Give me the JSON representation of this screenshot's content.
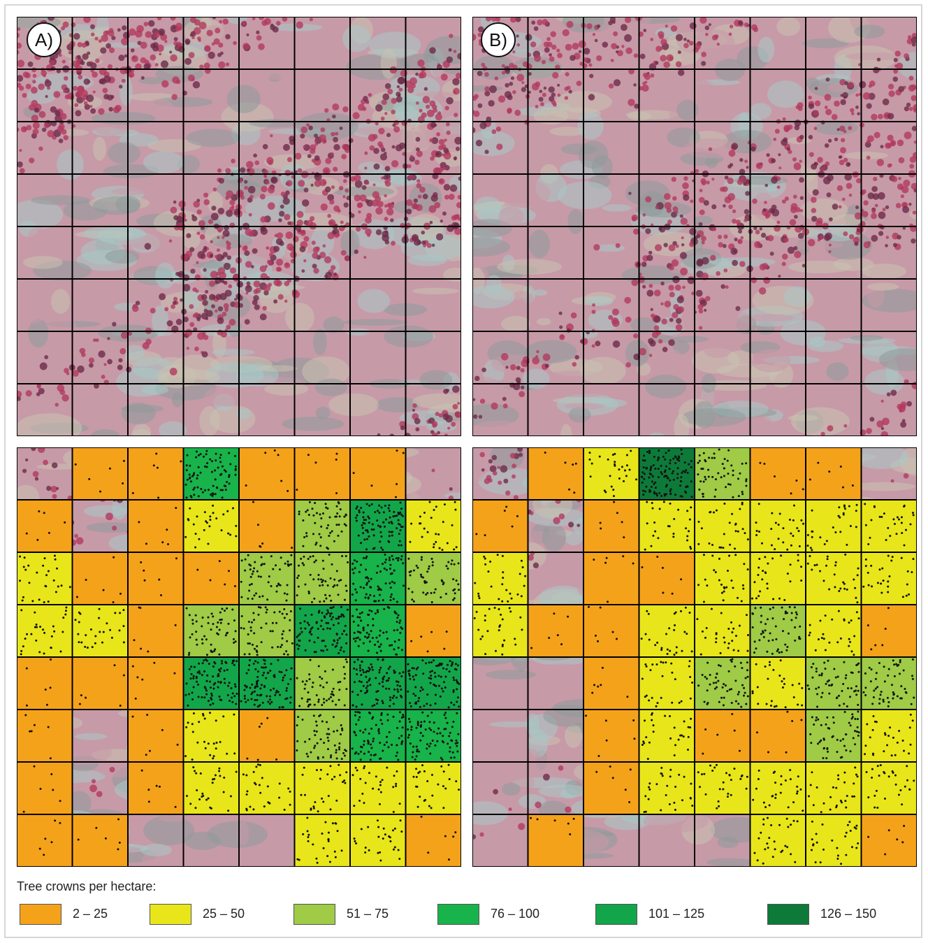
{
  "panels": {
    "a_label": "A)",
    "b_label": "B)"
  },
  "grid": {
    "rows": 8,
    "cols": 8,
    "line_color": "#000000"
  },
  "colors": {
    "forest_red": "#b13a5e",
    "forest_dark": "#6e2a48",
    "terrain_light": "#c9c3b0",
    "terrain_gray": "#8e9a9b",
    "terrain_pink": "#c79aa8",
    "terrain_cyan": "#a8c9c6"
  },
  "legend": {
    "title": "Tree crowns per hectare:",
    "classes": [
      {
        "label": "2 – 25",
        "color": "#f5a21b"
      },
      {
        "label": "25 – 50",
        "color": "#e8e61a"
      },
      {
        "label": "51 – 75",
        "color": "#9fcb46"
      },
      {
        "label": "76 – 100",
        "color": "#18b34a"
      },
      {
        "label": "101 – 125",
        "color": "#13a54a"
      },
      {
        "label": "126 – 150",
        "color": "#0d7a3a"
      }
    ]
  },
  "density_grid_a": [
    [
      -1,
      0,
      0,
      3,
      0,
      0,
      0,
      -1
    ],
    [
      0,
      -1,
      0,
      1,
      0,
      2,
      4,
      1
    ],
    [
      1,
      0,
      0,
      0,
      2,
      2,
      3,
      2
    ],
    [
      1,
      1,
      0,
      2,
      2,
      4,
      3,
      0
    ],
    [
      0,
      0,
      0,
      4,
      4,
      2,
      4,
      4
    ],
    [
      0,
      -1,
      0,
      1,
      0,
      2,
      3,
      3
    ],
    [
      0,
      -1,
      0,
      1,
      1,
      1,
      1,
      1
    ],
    [
      0,
      0,
      -1,
      -1,
      -1,
      1,
      1,
      0
    ]
  ],
  "density_grid_b": [
    [
      -1,
      0,
      1,
      5,
      2,
      0,
      0,
      -1
    ],
    [
      0,
      -1,
      0,
      1,
      1,
      1,
      1,
      1
    ],
    [
      1,
      -1,
      0,
      0,
      1,
      1,
      1,
      1
    ],
    [
      1,
      0,
      0,
      1,
      1,
      2,
      1,
      0
    ],
    [
      -1,
      -1,
      0,
      1,
      2,
      1,
      2,
      2
    ],
    [
      -1,
      -1,
      0,
      1,
      0,
      0,
      2,
      1
    ],
    [
      -1,
      -1,
      0,
      1,
      1,
      1,
      1,
      1
    ],
    [
      -1,
      0,
      -1,
      -1,
      -1,
      1,
      1,
      0
    ]
  ]
}
